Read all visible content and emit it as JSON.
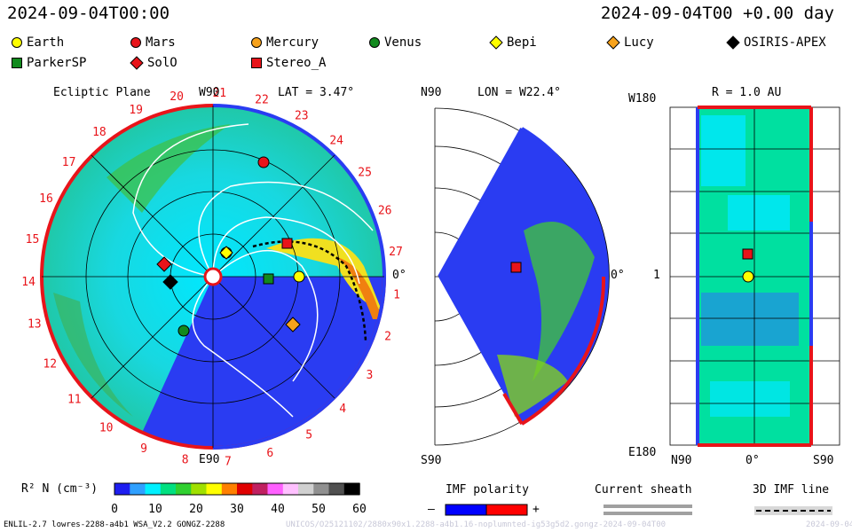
{
  "header": {
    "datetime_left": "2024-09-04T00:00",
    "datetime_right": "2024-09-04T00 +0.00 day"
  },
  "legend": [
    {
      "label": "Earth",
      "shape": "circle",
      "color": "#ffff00"
    },
    {
      "label": "Mars",
      "shape": "circle",
      "color": "#e8141a"
    },
    {
      "label": "Mercury",
      "shape": "circle",
      "color": "#f7a21b"
    },
    {
      "label": "Venus",
      "shape": "circle",
      "color": "#128a1e"
    },
    {
      "label": "Bepi",
      "shape": "diamond",
      "color": "#ffff00"
    },
    {
      "label": "Lucy",
      "shape": "diamond",
      "color": "#f7a21b"
    },
    {
      "label": "OSIRIS-APEX",
      "shape": "diamond",
      "color": "#000000"
    },
    {
      "label": "ParkerSP",
      "shape": "square",
      "color": "#128a1e"
    },
    {
      "label": "SolO",
      "shape": "diamond",
      "color": "#e8141a"
    },
    {
      "label": "Stereo_A",
      "shape": "square",
      "color": "#e8141a"
    }
  ],
  "ecliptic": {
    "title": "Ecliptic Plane",
    "lat": "LAT = 3.47°",
    "top_label": "W90",
    "bottom_label": "E90",
    "right_label": "0°",
    "carrington_ticks": [
      "20",
      "21",
      "22",
      "23",
      "24",
      "25",
      "26",
      "27",
      "1",
      "2",
      "3",
      "4",
      "5",
      "6",
      "7",
      "8",
      "9",
      "10",
      "11",
      "12",
      "13",
      "14",
      "15",
      "16",
      "17",
      "18",
      "19"
    ]
  },
  "meridional": {
    "lon": "LON = W22.4°",
    "top_label": "N90",
    "bottom_label": "S90",
    "right_label": "0°"
  },
  "sphere": {
    "r": "R = 1.0 AU",
    "top_left": "W180",
    "mid_left": "1",
    "bottom_left": "E180",
    "x_labels": [
      "N90",
      "0°",
      "S90"
    ]
  },
  "colorbar": {
    "label": "R² N (cm⁻³)",
    "ticks": [
      "0",
      "10",
      "20",
      "30",
      "40",
      "50",
      "60"
    ],
    "colors": [
      "#1e1ef0",
      "#2fa0ff",
      "#00f0ff",
      "#00e080",
      "#30d030",
      "#a0e000",
      "#ffff00",
      "#ff8000",
      "#e00000",
      "#c02060",
      "#ff60ff",
      "#ffc0ff",
      "#d0d0d0",
      "#909090",
      "#505050",
      "#000000"
    ]
  },
  "imf": {
    "title": "IMF polarity",
    "minus": "–",
    "plus": "+",
    "sheath": "Current sheath",
    "line": "3D IMF line"
  },
  "footer": {
    "left": "ENLIL-2.7 lowres-2288-a4b1 WSA_V2.2 GONGZ-2288",
    "ghost": "UNICOS/O25121102/2880x90x1.2288-a4b1.16-noplumnted-ig53g5d2.gongz-2024-09-04T00",
    "right": "2024-09-04"
  }
}
